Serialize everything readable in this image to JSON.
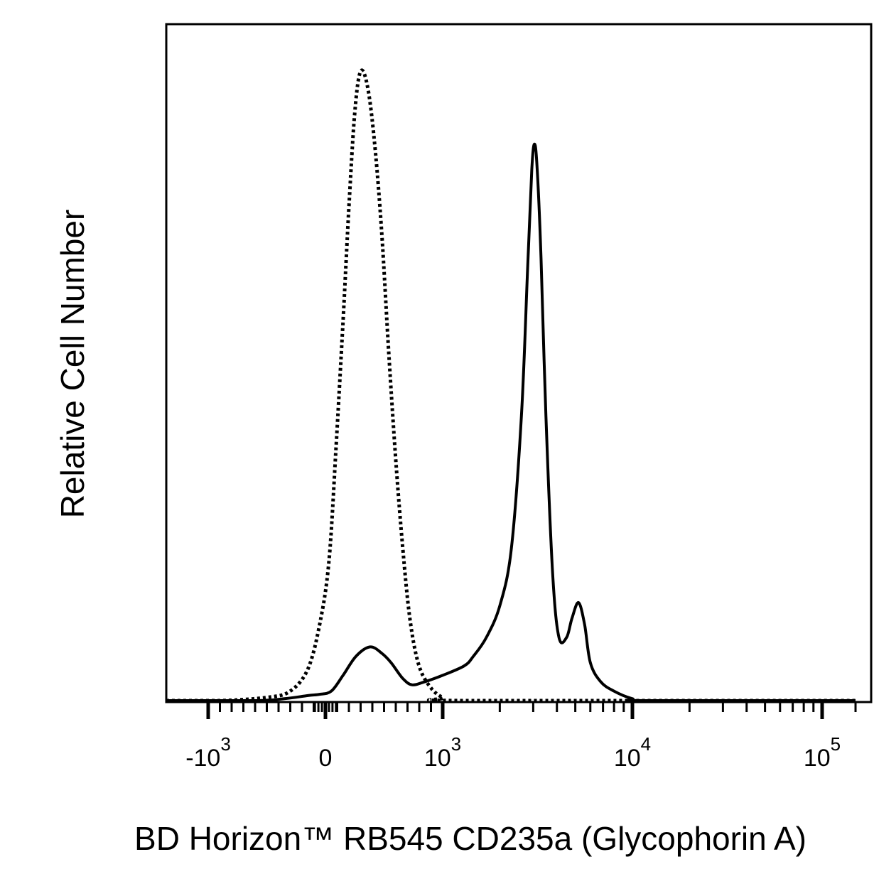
{
  "chart_data": {
    "type": "line",
    "xlabel": "BD Horizon™ RB545 CD235a (Glycophorin A)",
    "ylabel": "Relative Cell Number",
    "x_scale": "biexponential",
    "xlim": [
      -2000,
      150000
    ],
    "ylim": [
      0,
      1
    ],
    "grid": false,
    "legend": "none",
    "x_ticks": [
      {
        "value": -1000,
        "base": "-10",
        "exp": "3"
      },
      {
        "value": 0,
        "base": "0",
        "exp": ""
      },
      {
        "value": 1000,
        "base": "10",
        "exp": "3"
      },
      {
        "value": 10000,
        "base": "10",
        "exp": "4"
      },
      {
        "value": 100000,
        "base": "10",
        "exp": "5"
      }
    ],
    "series": [
      {
        "style": "dotted",
        "points": [
          [
            -2000,
            0
          ],
          [
            -900,
            0
          ],
          [
            -500,
            0.005
          ],
          [
            -300,
            0.015
          ],
          [
            -150,
            0.05
          ],
          [
            -50,
            0.12
          ],
          [
            30,
            0.22
          ],
          [
            90,
            0.4
          ],
          [
            150,
            0.6
          ],
          [
            200,
            0.78
          ],
          [
            250,
            0.93
          ],
          [
            300,
            0.995
          ],
          [
            360,
            0.97
          ],
          [
            420,
            0.88
          ],
          [
            480,
            0.74
          ],
          [
            540,
            0.55
          ],
          [
            600,
            0.38
          ],
          [
            660,
            0.24
          ],
          [
            720,
            0.13
          ],
          [
            790,
            0.06
          ],
          [
            880,
            0.025
          ],
          [
            1000,
            0.005
          ],
          [
            1300,
            0
          ],
          [
            150000,
            0
          ]
        ]
      },
      {
        "style": "solid",
        "points": [
          [
            -2000,
            0
          ],
          [
            -600,
            0
          ],
          [
            -350,
            0.003
          ],
          [
            -150,
            0.008
          ],
          [
            -50,
            0.01
          ],
          [
            50,
            0.015
          ],
          [
            150,
            0.04
          ],
          [
            260,
            0.07
          ],
          [
            380,
            0.085
          ],
          [
            480,
            0.075
          ],
          [
            560,
            0.06
          ],
          [
            660,
            0.035
          ],
          [
            740,
            0.025
          ],
          [
            850,
            0.03
          ],
          [
            1000,
            0.04
          ],
          [
            1300,
            0.055
          ],
          [
            1450,
            0.07
          ],
          [
            1700,
            0.1
          ],
          [
            2000,
            0.15
          ],
          [
            2300,
            0.24
          ],
          [
            2600,
            0.45
          ],
          [
            2800,
            0.68
          ],
          [
            2950,
            0.84
          ],
          [
            3050,
            0.88
          ],
          [
            3150,
            0.84
          ],
          [
            3300,
            0.7
          ],
          [
            3500,
            0.45
          ],
          [
            3800,
            0.2
          ],
          [
            4100,
            0.1
          ],
          [
            4500,
            0.1
          ],
          [
            4800,
            0.13
          ],
          [
            5200,
            0.155
          ],
          [
            5600,
            0.12
          ],
          [
            6000,
            0.06
          ],
          [
            6800,
            0.03
          ],
          [
            8000,
            0.015
          ],
          [
            10000,
            0.003
          ],
          [
            12000,
            0
          ],
          [
            150000,
            0
          ]
        ]
      }
    ]
  }
}
